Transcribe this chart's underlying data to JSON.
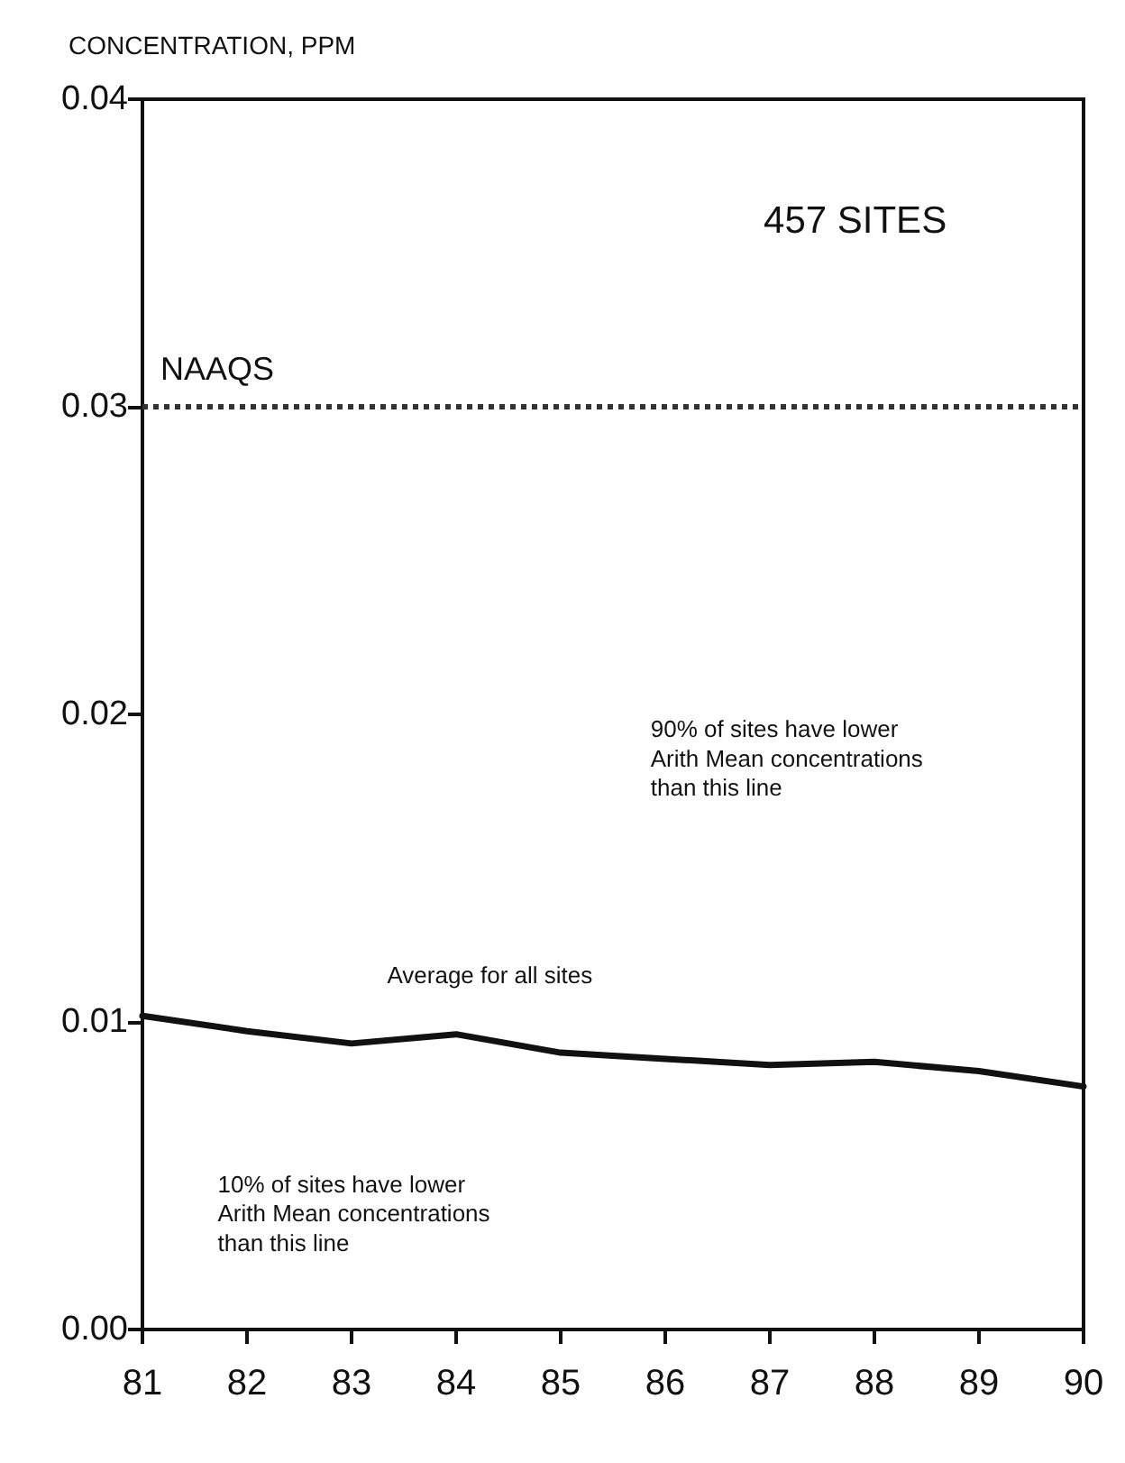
{
  "chart_data": {
    "type": "line",
    "ylabel": "CONCENTRATION, PPM",
    "x": [
      81,
      82,
      83,
      84,
      85,
      86,
      87,
      88,
      89,
      90
    ],
    "series": [
      {
        "color": "#111111",
        "values": [
          0.0102,
          0.0097,
          0.0093,
          0.0096,
          0.009,
          0.0088,
          0.0086,
          0.0087,
          0.0084,
          0.0079
        ]
      }
    ],
    "xlim": [
      81,
      90
    ],
    "xticks": [
      81,
      82,
      83,
      84,
      85,
      86,
      87,
      88,
      89,
      90
    ],
    "ylim": [
      0,
      0.04
    ],
    "yticks": [
      {
        "value": 0,
        "label": "0.00"
      },
      {
        "value": 0.01,
        "label": "0.01"
      },
      {
        "value": 0.02,
        "label": "0.02"
      },
      {
        "value": 0.03,
        "label": "0.03"
      },
      {
        "value": 0.04,
        "label": "0.04"
      }
    ],
    "ref_lines": [
      {
        "axis": "y",
        "value": 0.03,
        "label": "NAAQS",
        "color": "#333333",
        "line_style": "dotted"
      }
    ],
    "annotations": [
      "457 SITES",
      "90% of sites have lower\nArith Mean concentrations\nthan this line",
      "Average for all sites",
      "10% of sites have lower\nArith Mean concentrations\nthan this line"
    ],
    "grid": false,
    "marker": "none"
  }
}
